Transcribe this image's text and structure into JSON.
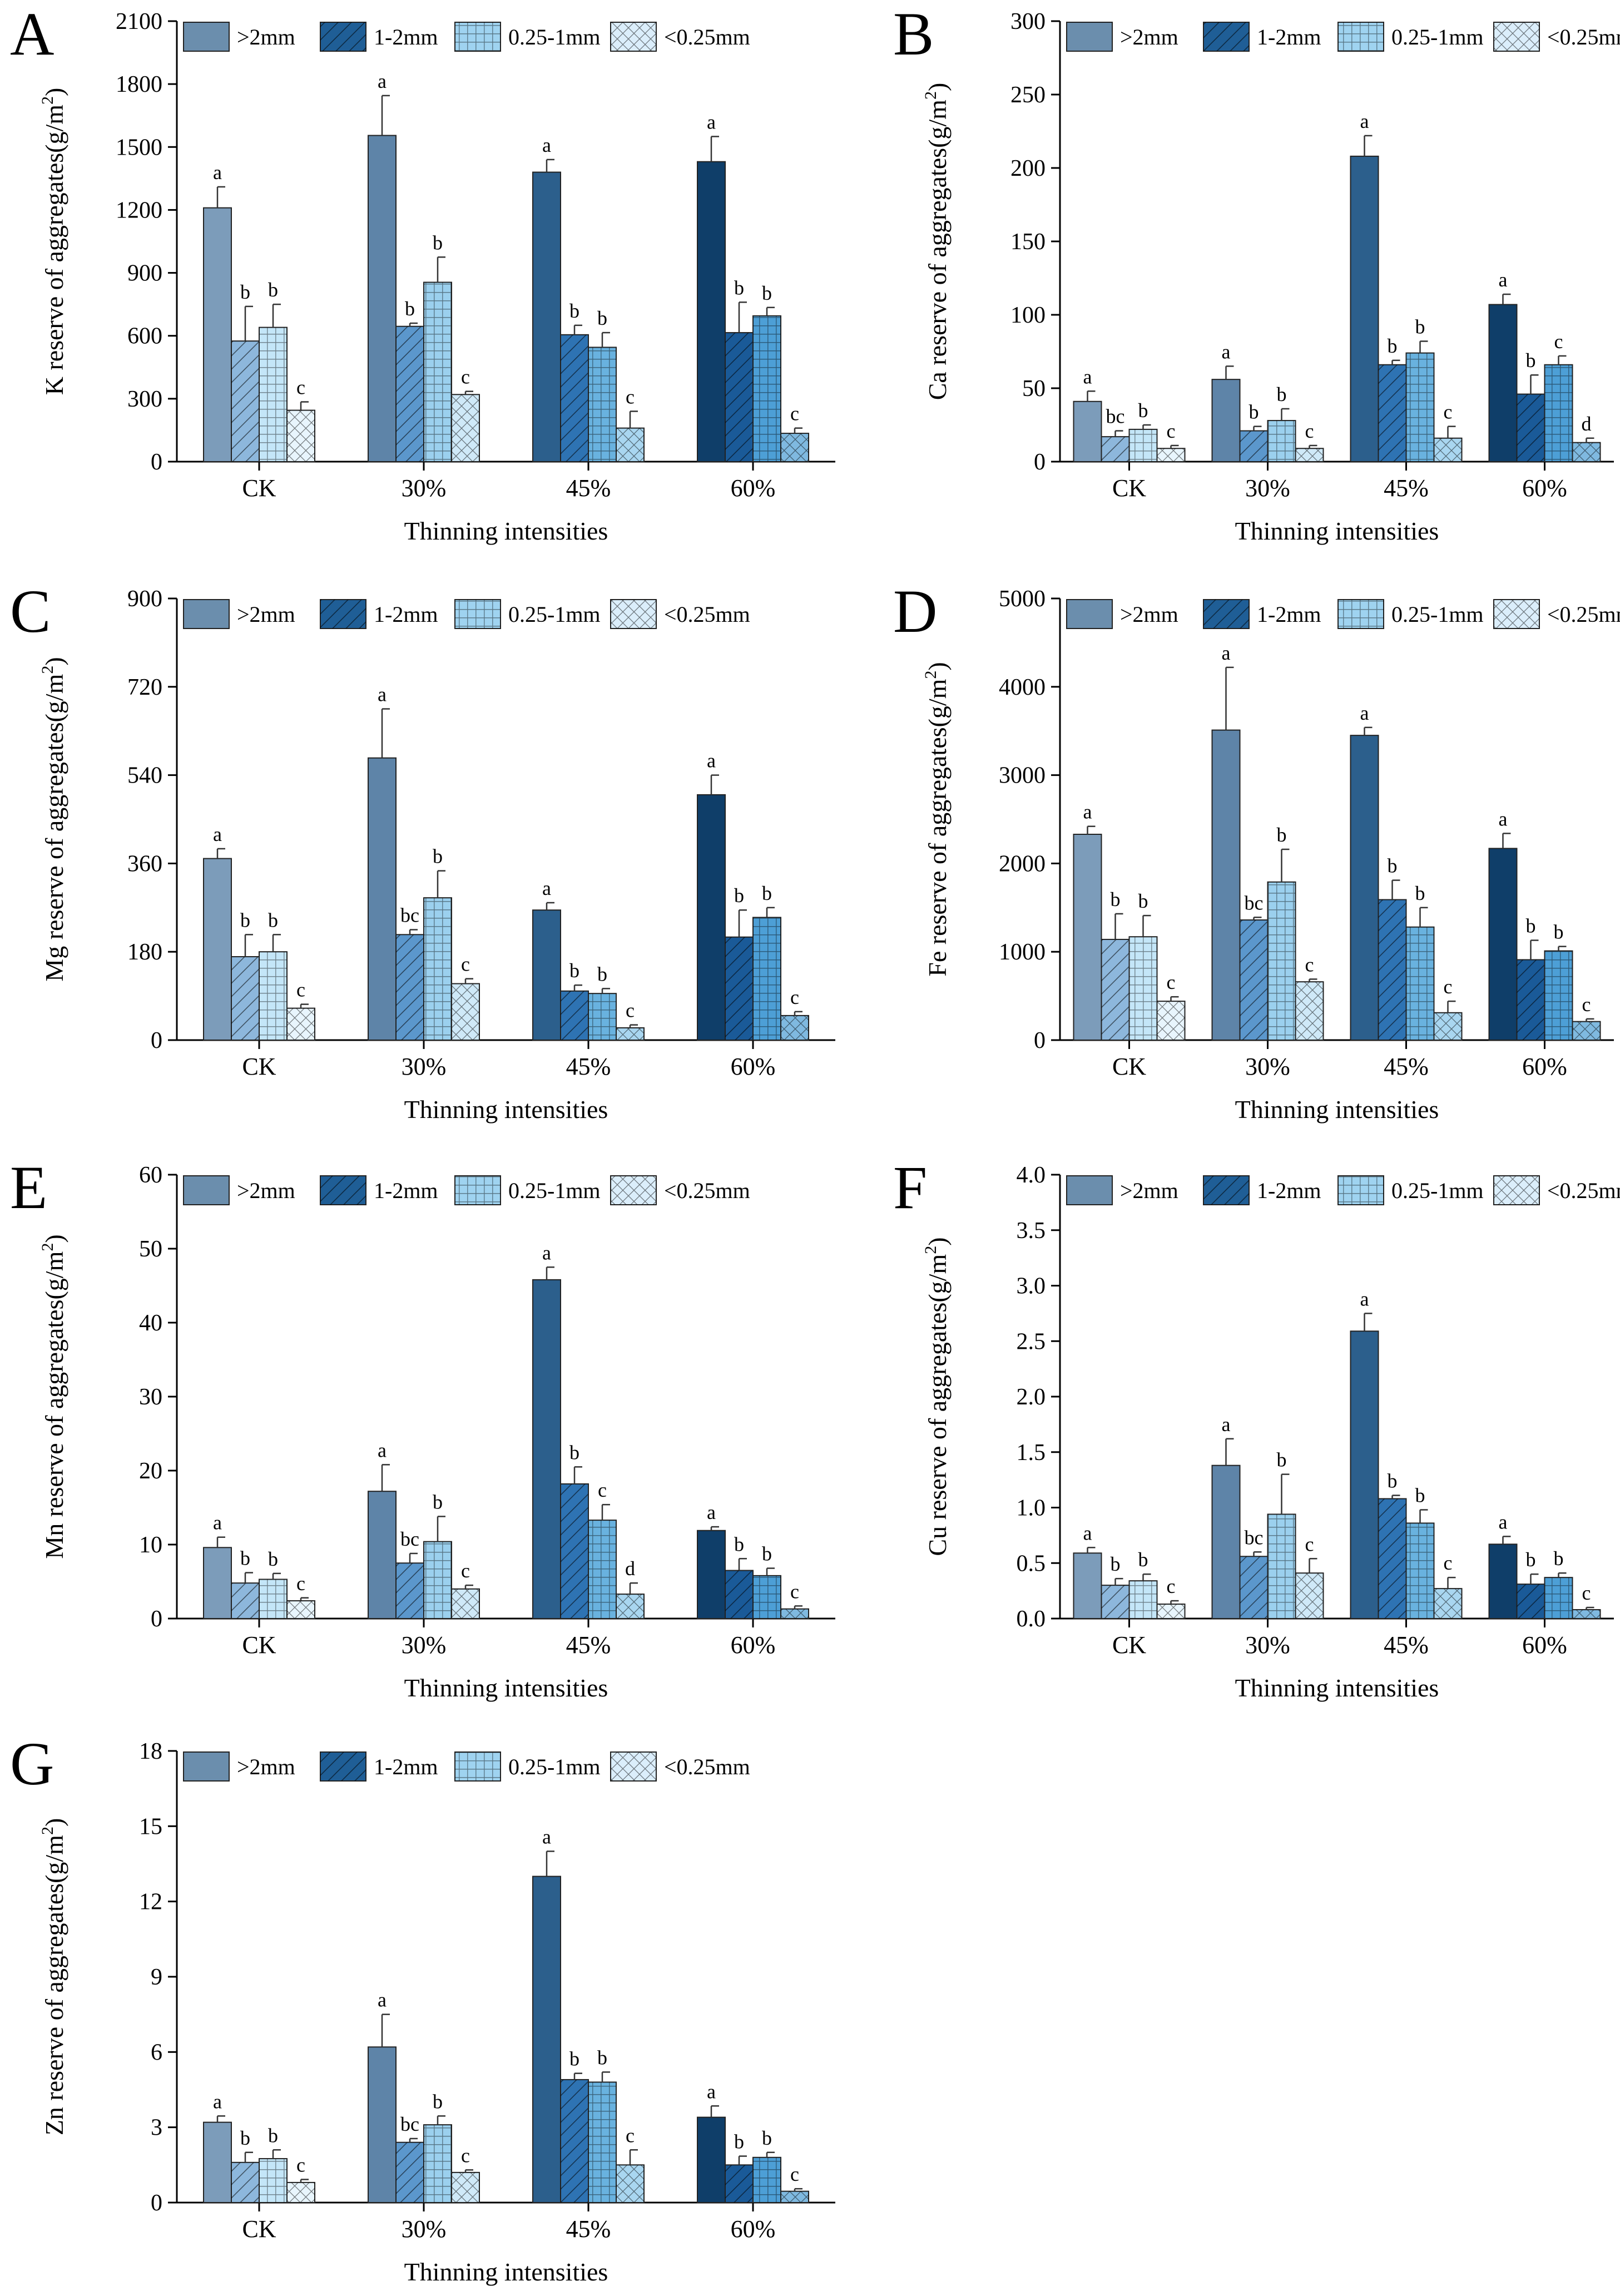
{
  "colors": {
    "gt2": "#6b8ead",
    "mm1_2": "#1f5e96",
    "mm025_1": "#9fd3f0",
    "lt025": "#dbeefb",
    "grad_gt2": [
      "#7c9cba",
      "#5e84a8",
      "#2c5f8c",
      "#0f3e69"
    ],
    "grad_1_2": [
      "#8db7dc",
      "#5b97cc",
      "#2e73b3",
      "#1a5a98"
    ],
    "grad_025_1": [
      "#c4e6f8",
      "#9bd0ee",
      "#69b2df",
      "#4d9fd6"
    ],
    "grad_lt025": [
      "#e8f5fd",
      "#cfe9f8",
      "#a9d6f0",
      "#7fb9e0"
    ]
  },
  "legend": [
    ">2mm",
    "1-2mm",
    "0.25-1mm",
    "<0.25mm"
  ],
  "chart_data": [
    {
      "panel": "A",
      "type": "bar",
      "categories": [
        "CK",
        "30%",
        "45%",
        "60%"
      ],
      "xlabel": "Thinning intensities",
      "ylabel_prefix": "K reserve of aggregates(g/m",
      "ylabel_sup": "2",
      "ylabel_suffix": ")",
      "ylim": [
        0,
        2100
      ],
      "yticks": [
        0,
        300,
        600,
        900,
        1200,
        1500,
        1800,
        2100
      ],
      "decimals": 0,
      "series": [
        {
          "name": ">2mm",
          "values": [
            1210,
            1555,
            1380,
            1430
          ],
          "errors": [
            100,
            190,
            60,
            120
          ],
          "letters": [
            "a",
            "a",
            "a",
            "a"
          ]
        },
        {
          "name": "1-2mm",
          "values": [
            575,
            645,
            605,
            615
          ],
          "errors": [
            165,
            15,
            45,
            145
          ],
          "letters": [
            "b",
            "b",
            "b",
            "b"
          ]
        },
        {
          "name": "0.25-1mm",
          "values": [
            640,
            855,
            545,
            695
          ],
          "errors": [
            110,
            120,
            70,
            40
          ],
          "letters": [
            "b",
            "b",
            "b",
            "b"
          ]
        },
        {
          "name": "<0.25mm",
          "values": [
            245,
            320,
            160,
            135
          ],
          "errors": [
            40,
            15,
            80,
            25
          ],
          "letters": [
            "c",
            "c",
            "c",
            "c"
          ]
        }
      ]
    },
    {
      "panel": "B",
      "type": "bar",
      "categories": [
        "CK",
        "30%",
        "45%",
        "60%"
      ],
      "xlabel": "Thinning intensities",
      "ylabel_prefix": "Ca reserve of aggregates(g/m",
      "ylabel_sup": "2",
      "ylabel_suffix": ")",
      "ylim": [
        0,
        300
      ],
      "yticks": [
        0,
        50,
        100,
        150,
        200,
        250,
        300
      ],
      "decimals": 0,
      "series": [
        {
          "name": ">2mm",
          "values": [
            41,
            56,
            208,
            107
          ],
          "errors": [
            7,
            9,
            14,
            7
          ],
          "letters": [
            "a",
            "a",
            "a",
            "a"
          ]
        },
        {
          "name": "1-2mm",
          "values": [
            17,
            21,
            66,
            46
          ],
          "errors": [
            4,
            3,
            3,
            13
          ],
          "letters": [
            "bc",
            "b",
            "b",
            "b"
          ]
        },
        {
          "name": "0.25-1mm",
          "values": [
            22,
            28,
            74,
            66
          ],
          "errors": [
            3,
            8,
            8,
            6
          ],
          "letters": [
            "b",
            "b",
            "b",
            "c"
          ]
        },
        {
          "name": "<0.25mm",
          "values": [
            9,
            9,
            16,
            13
          ],
          "errors": [
            2,
            2,
            8,
            3
          ],
          "letters": [
            "c",
            "c",
            "c",
            "d"
          ]
        }
      ]
    },
    {
      "panel": "C",
      "type": "bar",
      "categories": [
        "CK",
        "30%",
        "45%",
        "60%"
      ],
      "xlabel": "Thinning intensities",
      "ylabel_prefix": "Mg reserve of aggregates(g/m",
      "ylabel_sup": "2",
      "ylabel_suffix": ")",
      "ylim": [
        0,
        900
      ],
      "yticks": [
        0,
        180,
        360,
        540,
        720,
        900
      ],
      "decimals": 0,
      "series": [
        {
          "name": ">2mm",
          "values": [
            370,
            575,
            265,
            500
          ],
          "errors": [
            20,
            100,
            15,
            40
          ],
          "letters": [
            "a",
            "a",
            "a",
            "a"
          ]
        },
        {
          "name": "1-2mm",
          "values": [
            170,
            215,
            100,
            210
          ],
          "errors": [
            45,
            10,
            12,
            55
          ],
          "letters": [
            "b",
            "bc",
            "b",
            "b"
          ]
        },
        {
          "name": "0.25-1mm",
          "values": [
            180,
            290,
            95,
            250
          ],
          "errors": [
            35,
            55,
            10,
            20
          ],
          "letters": [
            "b",
            "b",
            "b",
            "b"
          ]
        },
        {
          "name": "<0.25mm",
          "values": [
            65,
            115,
            25,
            50
          ],
          "errors": [
            8,
            10,
            6,
            8
          ],
          "letters": [
            "c",
            "c",
            "c",
            "c"
          ]
        }
      ]
    },
    {
      "panel": "D",
      "type": "bar",
      "categories": [
        "CK",
        "30%",
        "45%",
        "60%"
      ],
      "xlabel": "Thinning intensities",
      "ylabel_prefix": "Fe reserve of aggregates(g/m",
      "ylabel_sup": "2",
      "ylabel_suffix": ")",
      "ylim": [
        0,
        5000
      ],
      "yticks": [
        0,
        1000,
        2000,
        3000,
        4000,
        5000
      ],
      "decimals": 0,
      "series": [
        {
          "name": ">2mm",
          "values": [
            2330,
            3510,
            3450,
            2170
          ],
          "errors": [
            90,
            710,
            90,
            170
          ],
          "letters": [
            "a",
            "a",
            "a",
            "a"
          ]
        },
        {
          "name": "1-2mm",
          "values": [
            1140,
            1360,
            1590,
            910
          ],
          "errors": [
            290,
            30,
            220,
            220
          ],
          "letters": [
            "b",
            "bc",
            "b",
            "b"
          ]
        },
        {
          "name": "0.25-1mm",
          "values": [
            1170,
            1790,
            1280,
            1010
          ],
          "errors": [
            240,
            370,
            220,
            50
          ],
          "letters": [
            "b",
            "b",
            "b",
            "b"
          ]
        },
        {
          "name": "<0.25mm",
          "values": [
            440,
            660,
            310,
            210
          ],
          "errors": [
            50,
            30,
            130,
            30
          ],
          "letters": [
            "c",
            "c",
            "c",
            "c"
          ]
        }
      ]
    },
    {
      "panel": "E",
      "type": "bar",
      "categories": [
        "CK",
        "30%",
        "45%",
        "60%"
      ],
      "xlabel": "Thinning intensities",
      "ylabel_prefix": "Mn reserve of aggregates(g/m",
      "ylabel_sup": "2",
      "ylabel_suffix": ")",
      "ylim": [
        0,
        60
      ],
      "yticks": [
        0,
        10,
        20,
        30,
        40,
        50,
        60
      ],
      "decimals": 0,
      "series": [
        {
          "name": ">2mm",
          "values": [
            9.6,
            17.2,
            45.8,
            11.9
          ],
          "errors": [
            1.4,
            3.6,
            1.7,
            0.5
          ],
          "letters": [
            "a",
            "a",
            "a",
            "a"
          ]
        },
        {
          "name": "1-2mm",
          "values": [
            4.8,
            7.5,
            18.2,
            6.5
          ],
          "errors": [
            1.4,
            1.3,
            2.3,
            1.6
          ],
          "letters": [
            "b",
            "bc",
            "b",
            "b"
          ]
        },
        {
          "name": "0.25-1mm",
          "values": [
            5.3,
            10.4,
            13.3,
            5.8
          ],
          "errors": [
            0.8,
            3.4,
            2.1,
            1.0
          ],
          "letters": [
            "b",
            "b",
            "c",
            "b"
          ]
        },
        {
          "name": "<0.25mm",
          "values": [
            2.4,
            4.0,
            3.3,
            1.3
          ],
          "errors": [
            0.4,
            0.5,
            1.5,
            0.4
          ],
          "letters": [
            "c",
            "c",
            "d",
            "c"
          ]
        }
      ]
    },
    {
      "panel": "F",
      "type": "bar",
      "categories": [
        "CK",
        "30%",
        "45%",
        "60%"
      ],
      "xlabel": "Thinning intensities",
      "ylabel_prefix": "Cu reserve of aggregates(g/m",
      "ylabel_sup": "2",
      "ylabel_suffix": ")",
      "ylim": [
        0,
        4.0
      ],
      "yticks": [
        0,
        0.5,
        1.0,
        1.5,
        2.0,
        2.5,
        3.0,
        3.5,
        4.0
      ],
      "decimals": 1,
      "series": [
        {
          "name": ">2mm",
          "values": [
            0.59,
            1.38,
            2.59,
            0.67
          ],
          "errors": [
            0.05,
            0.24,
            0.16,
            0.07
          ],
          "letters": [
            "a",
            "a",
            "a",
            "a"
          ]
        },
        {
          "name": "1-2mm",
          "values": [
            0.3,
            0.56,
            1.08,
            0.31
          ],
          "errors": [
            0.06,
            0.04,
            0.03,
            0.09
          ],
          "letters": [
            "b",
            "bc",
            "b",
            "b"
          ]
        },
        {
          "name": "0.25-1mm",
          "values": [
            0.34,
            0.94,
            0.86,
            0.37
          ],
          "errors": [
            0.06,
            0.36,
            0.12,
            0.04
          ],
          "letters": [
            "b",
            "b",
            "b",
            "b"
          ]
        },
        {
          "name": "<0.25mm",
          "values": [
            0.13,
            0.41,
            0.27,
            0.08
          ],
          "errors": [
            0.03,
            0.13,
            0.1,
            0.02
          ],
          "letters": [
            "c",
            "c",
            "c",
            "c"
          ]
        }
      ]
    },
    {
      "panel": "G",
      "type": "bar",
      "categories": [
        "CK",
        "30%",
        "45%",
        "60%"
      ],
      "xlabel": "Thinning intensities",
      "ylabel_prefix": "Zn reserve of aggregates(g/m",
      "ylabel_sup": "2",
      "ylabel_suffix": ")",
      "ylim": [
        0,
        18
      ],
      "yticks": [
        0,
        3,
        6,
        9,
        12,
        15,
        18
      ],
      "decimals": 0,
      "series": [
        {
          "name": ">2mm",
          "values": [
            3.2,
            6.2,
            13.0,
            3.4
          ],
          "errors": [
            0.25,
            1.3,
            1.0,
            0.45
          ],
          "letters": [
            "a",
            "a",
            "a",
            "a"
          ]
        },
        {
          "name": "1-2mm",
          "values": [
            1.6,
            2.4,
            4.9,
            1.5
          ],
          "errors": [
            0.4,
            0.15,
            0.25,
            0.35
          ],
          "letters": [
            "b",
            "bc",
            "b",
            "b"
          ]
        },
        {
          "name": "0.25-1mm",
          "values": [
            1.75,
            3.1,
            4.8,
            1.8
          ],
          "errors": [
            0.35,
            0.35,
            0.4,
            0.2
          ],
          "letters": [
            "b",
            "b",
            "b",
            "b"
          ]
        },
        {
          "name": "<0.25mm",
          "values": [
            0.8,
            1.2,
            1.5,
            0.45
          ],
          "errors": [
            0.12,
            0.1,
            0.6,
            0.1
          ],
          "letters": [
            "c",
            "c",
            "c",
            "c"
          ]
        }
      ]
    }
  ]
}
